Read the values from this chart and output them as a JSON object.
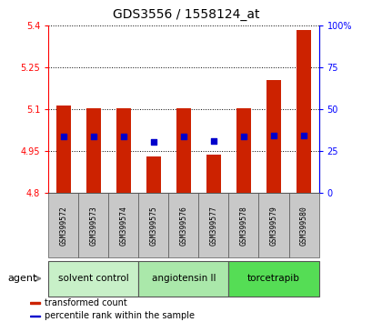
{
  "title": "GDS3556 / 1558124_at",
  "samples": [
    "GSM399572",
    "GSM399573",
    "GSM399574",
    "GSM399575",
    "GSM399576",
    "GSM399577",
    "GSM399578",
    "GSM399579",
    "GSM399580"
  ],
  "bar_bottoms": [
    4.8,
    4.8,
    4.8,
    4.8,
    4.8,
    4.8,
    4.8,
    4.8,
    4.8
  ],
  "bar_tops": [
    5.115,
    5.105,
    5.105,
    4.932,
    5.105,
    4.937,
    5.105,
    5.205,
    5.385
  ],
  "percentile_values": [
    5.005,
    5.002,
    5.003,
    4.985,
    5.005,
    4.988,
    5.005,
    5.007,
    5.008
  ],
  "bar_color": "#cc2200",
  "dot_color": "#0000cc",
  "ylim_left": [
    4.8,
    5.4
  ],
  "ylim_right": [
    0,
    100
  ],
  "yticks_left": [
    4.8,
    4.95,
    5.1,
    5.25,
    5.4
  ],
  "ytick_labels_left": [
    "4.8",
    "4.95",
    "5.1",
    "5.25",
    "5.4"
  ],
  "yticks_right": [
    0,
    25,
    50,
    75,
    100
  ],
  "ytick_labels_right": [
    "0",
    "25",
    "50",
    "75",
    "100%"
  ],
  "groups": [
    {
      "label": "solvent control",
      "indices": [
        0,
        1,
        2
      ],
      "color": "#c8f0c8"
    },
    {
      "label": "angiotensin II",
      "indices": [
        3,
        4,
        5
      ],
      "color": "#aae8aa"
    },
    {
      "label": "torcetrapib",
      "indices": [
        6,
        7,
        8
      ],
      "color": "#55dd55"
    }
  ],
  "agent_label": "agent",
  "legend_items": [
    {
      "label": "transformed count",
      "color": "#cc2200"
    },
    {
      "label": "percentile rank within the sample",
      "color": "#0000cc"
    }
  ],
  "bar_width": 0.5,
  "dot_size": 20,
  "sample_box_color": "#c8c8c8",
  "title_fontsize": 10
}
